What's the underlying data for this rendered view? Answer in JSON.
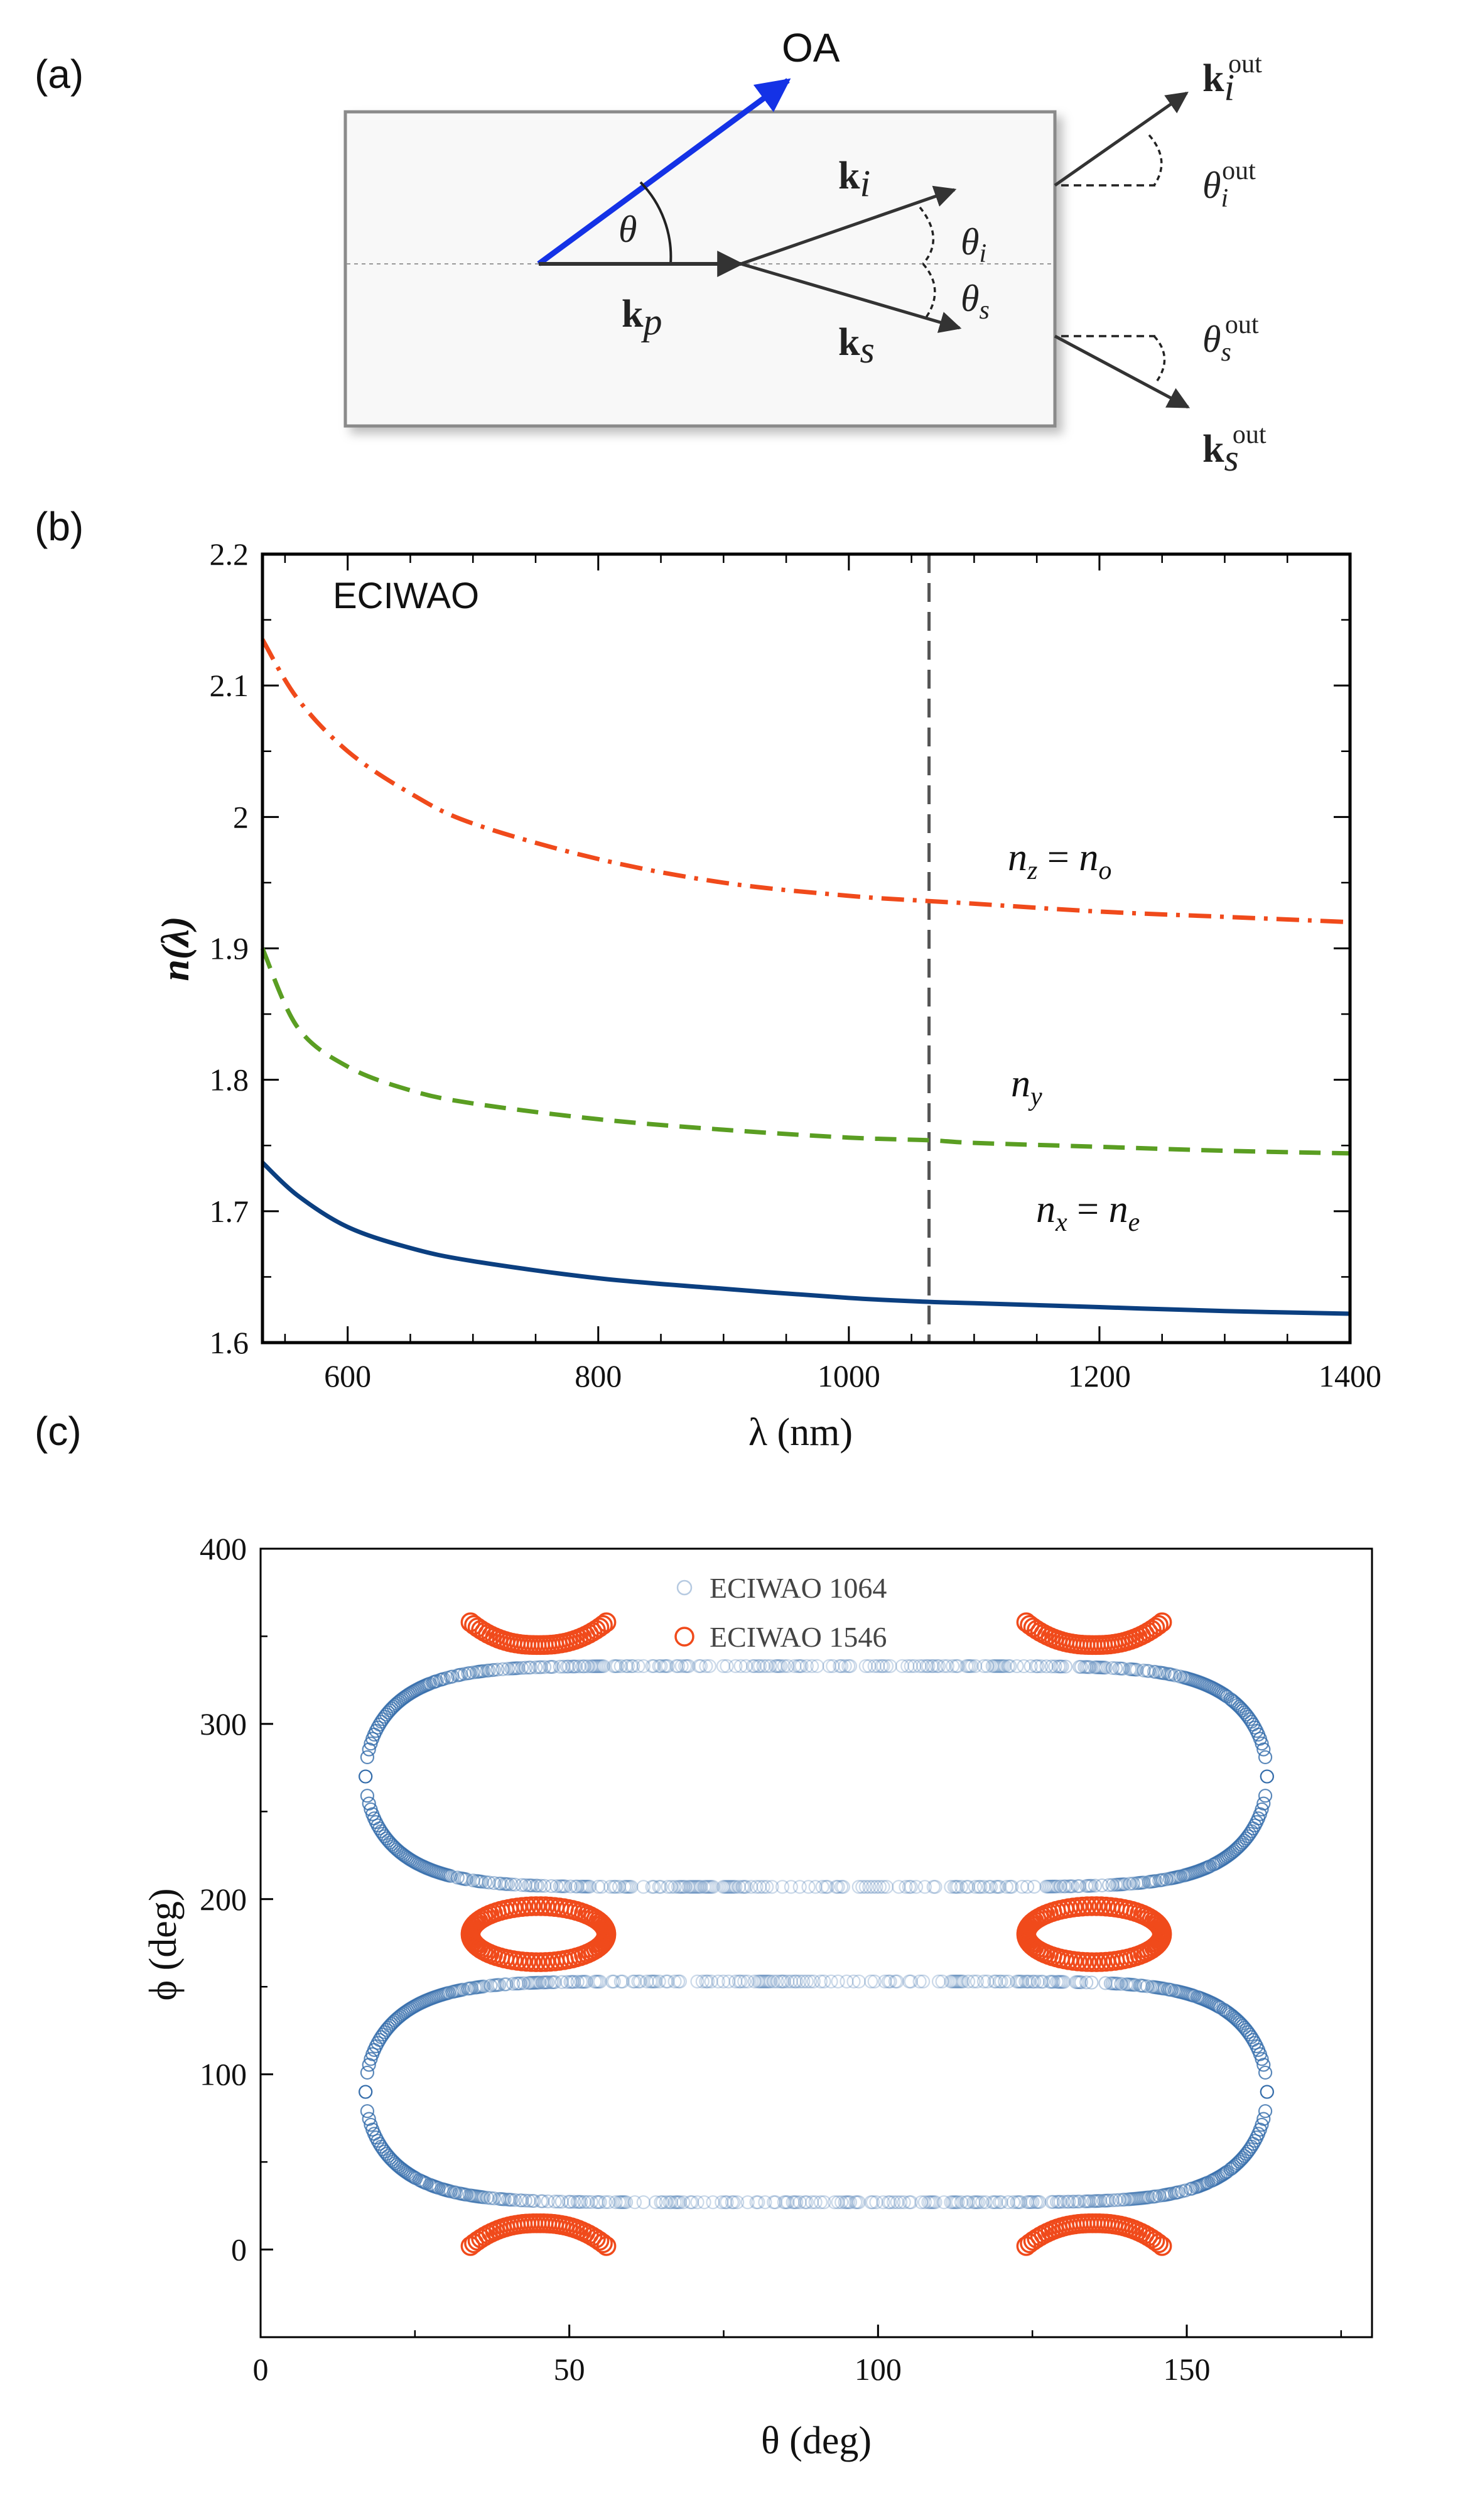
{
  "panel_a": {
    "label": "(a)",
    "oa_label": "OA",
    "theta": "θ",
    "kp": {
      "bold": "k",
      "sub": "p"
    },
    "ki": {
      "bold": "k",
      "sub": "i"
    },
    "ks": {
      "bold": "k",
      "sub": "s"
    },
    "theta_i": {
      "main": "θ",
      "sub": "i"
    },
    "theta_s": {
      "main": "θ",
      "sub": "s"
    },
    "ki_out": {
      "bold": "k",
      "sub": "i",
      "sup": "out"
    },
    "ks_out": {
      "bold": "k",
      "sub": "s",
      "sup": "out"
    },
    "theta_i_out": {
      "main": "θ",
      "sub": "i",
      "sup": "out"
    },
    "theta_s_out": {
      "main": "θ",
      "sub": "s",
      "sup": "out"
    }
  },
  "panel_b": {
    "label": "(b)",
    "annotations": {
      "nz": {
        "a": "n",
        "as": "z",
        "eq": " = ",
        "b": "n",
        "bs": "o"
      },
      "ny": {
        "a": "n",
        "as": "y"
      },
      "nx": {
        "a": "n",
        "as": "x",
        "eq": " = ",
        "b": "n",
        "bs": "e"
      }
    }
  },
  "panel_c": {
    "label": "(c)"
  },
  "colors": {
    "blue_curve": "#0b3f80",
    "green_curve": "#5a9e22",
    "orange_curve": "#f04a1b",
    "oa_arrow": "#1432e6",
    "scatter_blue": "#2e68a8",
    "scatter_orange": "#f04a1b"
  },
  "chart_data": [
    {
      "type": "line",
      "title": "ECIWAO",
      "xlabel": "λ (nm)",
      "ylabel": "n(λ)",
      "xlim": [
        532,
        1400
      ],
      "ylim": [
        1.6,
        2.2
      ],
      "xticks": [
        600,
        800,
        1000,
        1200,
        1400
      ],
      "xtick_labels": [
        "600",
        "800",
        "1000",
        "1200",
        "1400"
      ],
      "yticks": [
        1.6,
        1.7,
        1.8,
        1.9,
        2.0,
        2.1,
        2.2
      ],
      "ytick_labels": [
        "1.6",
        "1.7",
        "1.8",
        "1.9",
        "2",
        "2.1",
        "2.2"
      ],
      "vline_x": 1064,
      "x": [
        532,
        560,
        600,
        650,
        700,
        800,
        900,
        1000,
        1064,
        1100,
        1200,
        1300,
        1400
      ],
      "series": [
        {
          "name": "n_z = n_o",
          "style": "dashdot",
          "values": [
            2.135,
            2.09,
            2.05,
            2.018,
            1.995,
            1.968,
            1.95,
            1.94,
            1.936,
            1.934,
            1.928,
            1.924,
            1.92
          ]
        },
        {
          "name": "n_y",
          "style": "dashed",
          "values": [
            1.9,
            1.84,
            1.81,
            1.792,
            1.782,
            1.77,
            1.762,
            1.756,
            1.754,
            1.752,
            1.749,
            1.746,
            1.744
          ]
        },
        {
          "name": "n_x = n_e",
          "style": "solid",
          "values": [
            1.737,
            1.712,
            1.688,
            1.672,
            1.662,
            1.649,
            1.641,
            1.634,
            1.631,
            1.63,
            1.627,
            1.624,
            1.622
          ]
        }
      ]
    },
    {
      "type": "scatter",
      "xlabel": "θ (deg)",
      "ylabel": "ϕ (deg)",
      "xlim": [
        0,
        180
      ],
      "ylim": [
        -50,
        400
      ],
      "xticks": [
        0,
        50,
        100,
        150
      ],
      "xtick_labels": [
        "0",
        "50",
        "100",
        "150"
      ],
      "yticks": [
        0,
        100,
        200,
        300,
        400
      ],
      "ytick_labels": [
        "0",
        "100",
        "200",
        "300",
        "400"
      ],
      "legend_position": "top-center",
      "series": [
        {
          "name": "ECIWAO 1064",
          "marker": "open-circle",
          "theta_extent": [
            17,
            163
          ],
          "phi_centers": [
            90,
            270
          ],
          "phi_half_range_at_edge": 63,
          "phi_half_range_at_center": 63
        },
        {
          "name": "ECIWAO 1546",
          "marker": "open-circle",
          "rings": [
            {
              "theta_center": 45,
              "phi_center": 180,
              "theta_half_width": 11,
              "phi_half_width": 16
            },
            {
              "theta_center": 135,
              "phi_center": 180,
              "theta_half_width": 11,
              "phi_half_width": 16
            }
          ],
          "arcs": [
            {
              "theta_range": [
                34,
                56
              ],
              "phi_edge": 358,
              "phi_mid": 345
            },
            {
              "theta_range": [
                124,
                146
              ],
              "phi_edge": 358,
              "phi_mid": 345
            },
            {
              "theta_range": [
                34,
                56
              ],
              "phi_edge": 2,
              "phi_mid": 15
            },
            {
              "theta_range": [
                124,
                146
              ],
              "phi_edge": 2,
              "phi_mid": 15
            }
          ]
        }
      ]
    }
  ]
}
